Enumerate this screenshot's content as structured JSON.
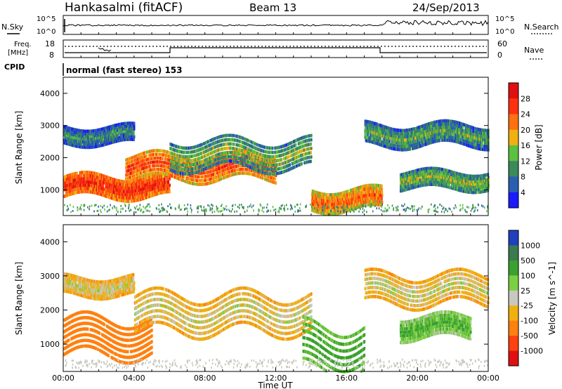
{
  "header": {
    "station": "Hankasalmi (fitACF)",
    "beam": "Beam 13",
    "date": "24/Sep/2013"
  },
  "top_panels": {
    "nsky_label": "N.Sky",
    "nsky_tick_hi": "10^5",
    "nsky_tick_lo": "10^0",
    "nsearch_label": "N.Search",
    "freq_label_1": "Freq.",
    "freq_label_2": "[MHz]",
    "freq_tick_hi": "18",
    "freq_tick_lo": "8",
    "nave_tick_hi": "60",
    "nave_tick_lo": "0",
    "nave_label": "Nave",
    "cpid_label": "CPID",
    "cpid_text": "normal (fast stereo) 153"
  },
  "axes": {
    "ylabel": "Slant Range [km]",
    "xlabel": "Time UT",
    "yticks": [
      "1000",
      "2000",
      "3000",
      "4000"
    ],
    "xticks": [
      "00:00",
      "04:00",
      "08:00",
      "12:00",
      "16:00",
      "20:00",
      "00:00"
    ]
  },
  "power_bar": {
    "label": "Power [dB]",
    "ticks": [
      "4",
      "8",
      "12",
      "16",
      "20",
      "24",
      "28"
    ],
    "colors": [
      "#1a1aff",
      "#2a5fb0",
      "#3a8a5a",
      "#5cc040",
      "#f0b010",
      "#ff7010",
      "#ff3010",
      "#e01010"
    ]
  },
  "velocity_bar": {
    "label": "Velocity [m s^-1]",
    "ticks": [
      "1000",
      "500",
      "100",
      "25",
      "-25",
      "-100",
      "-500",
      "-1000"
    ],
    "colors": [
      "#2040c0",
      "#3a7a50",
      "#3aa030",
      "#7ad040",
      "#c8c8c0",
      "#f0b010",
      "#ff8010",
      "#ff4010",
      "#e01010"
    ]
  },
  "chart_data": [
    {
      "type": "heatmap",
      "title": "Power",
      "xlabel": "Time UT",
      "ylabel": "Slant Range [km]",
      "xlim": [
        "00:00",
        "24:00"
      ],
      "ylim": [
        200,
        4500
      ],
      "colorbar": "Power [dB]",
      "colorbar_range": [
        0,
        30
      ],
      "bands": [
        {
          "name": "",
          "t_start": 0,
          "t_end": 6,
          "range_km_center": 1100,
          "range_width_km": 300,
          "power_db": 26
        },
        {
          "name": "",
          "t_start": 3.5,
          "t_end": 12,
          "range_km_center": 1700,
          "range_width_km": 350,
          "power_db": 24
        },
        {
          "name": "",
          "t_start": 6,
          "t_end": 14,
          "range_km_center": 2100,
          "range_width_km": 400,
          "power_db": 14
        },
        {
          "name": "",
          "t_start": 0,
          "t_end": 4,
          "range_km_center": 2700,
          "range_width_km": 250,
          "power_db": 10
        },
        {
          "name": "",
          "t_start": 14,
          "t_end": 18,
          "range_km_center": 700,
          "range_width_km": 300,
          "power_db": 22
        },
        {
          "name": "",
          "t_start": 17,
          "t_end": 24,
          "range_km_center": 2700,
          "range_width_km": 300,
          "power_db": 12
        },
        {
          "name": "",
          "t_start": 19,
          "t_end": 24,
          "range_km_center": 1300,
          "range_width_km": 250,
          "power_db": 14
        }
      ]
    },
    {
      "type": "heatmap",
      "title": "Velocity",
      "xlabel": "Time UT",
      "ylabel": "Slant Range [km]",
      "xlim": [
        "00:00",
        "24:00"
      ],
      "ylim": [
        200,
        4500
      ],
      "colorbar": "Velocity [m s^-1]",
      "colorbar_ticks": [
        1000,
        500,
        100,
        25,
        -25,
        -100,
        -500,
        -1000
      ],
      "bands": [
        {
          "name": "",
          "t_start": 0,
          "t_end": 5,
          "range_km_center": 1200,
          "range_width_km": 500,
          "velocity": -300
        },
        {
          "name": "",
          "t_start": 4,
          "t_end": 14,
          "range_km_center": 1900,
          "range_width_km": 500,
          "velocity": 0
        },
        {
          "name": "",
          "t_start": 0,
          "t_end": 4,
          "range_km_center": 2700,
          "range_width_km": 250,
          "velocity": 0
        },
        {
          "name": "",
          "t_start": 13.5,
          "t_end": 17,
          "range_km_center": 900,
          "range_width_km": 600,
          "velocity": 150
        },
        {
          "name": "",
          "t_start": 17,
          "t_end": 24,
          "range_km_center": 2600,
          "range_width_km": 400,
          "velocity": 0
        },
        {
          "name": "",
          "t_start": 19,
          "t_end": 23,
          "range_km_center": 1500,
          "range_width_km": 300,
          "velocity": 120
        }
      ]
    }
  ]
}
